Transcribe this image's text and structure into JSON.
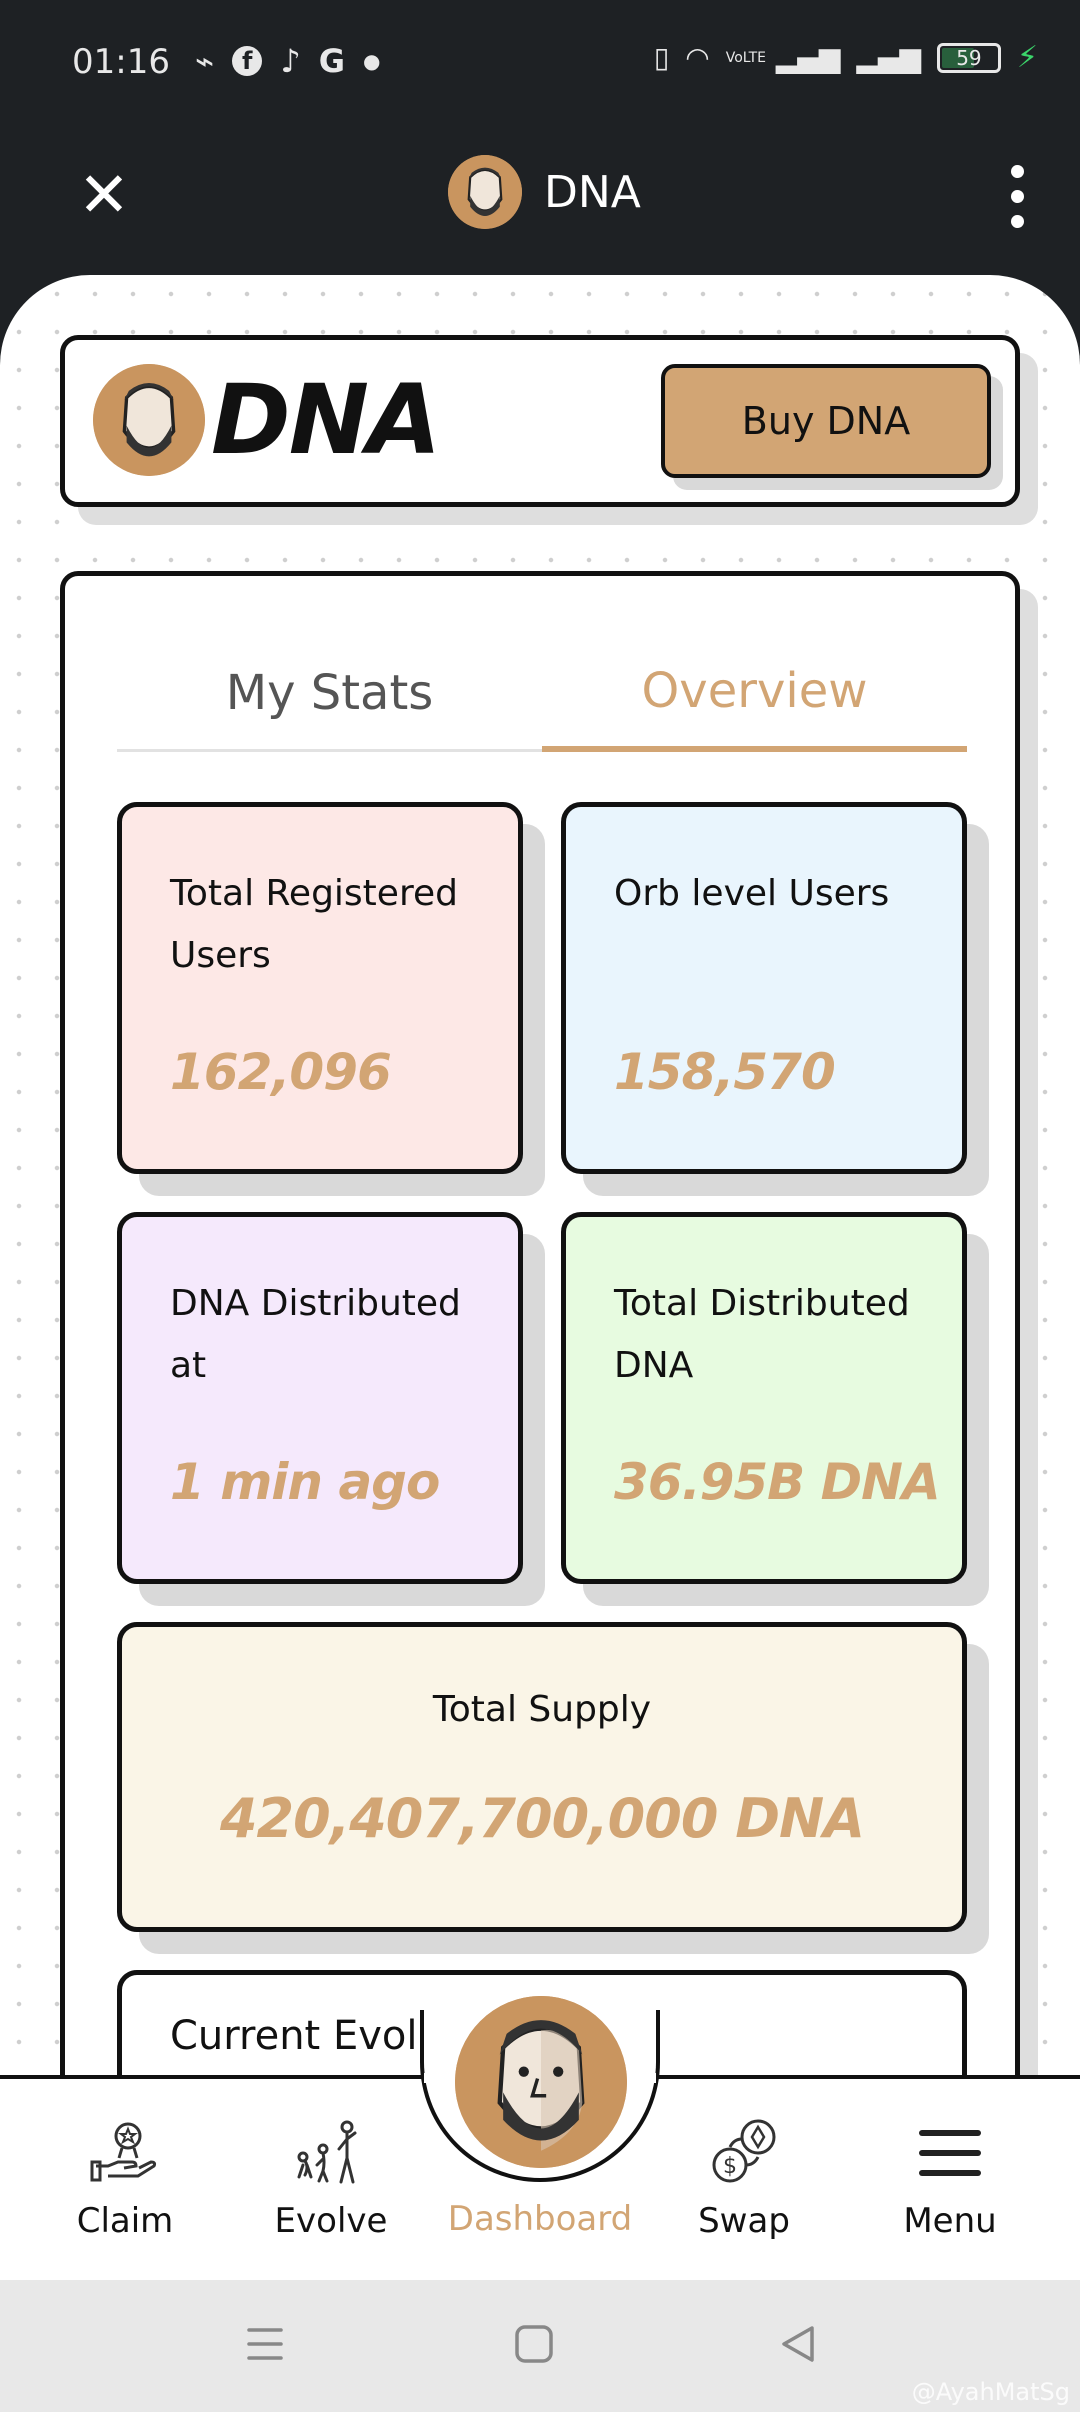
{
  "status_bar": {
    "time": "01:16",
    "battery": "59",
    "net_label": "VoLTE"
  },
  "app_header": {
    "title": "DNA"
  },
  "brand": {
    "logo_text": "DNA",
    "buy_button": "Buy DNA"
  },
  "tabs": [
    {
      "label": "My Stats",
      "active": false
    },
    {
      "label": "Overview",
      "active": true
    }
  ],
  "stats": [
    {
      "label": "Total Registered Users",
      "value": "162,096"
    },
    {
      "label": "Orb level Users",
      "value": "158,570"
    },
    {
      "label": "DNA Distributed at",
      "value": "1 min ago"
    },
    {
      "label": "Total Distributed DNA",
      "value": "36.95B DNA"
    },
    {
      "label": "Total Supply",
      "value": "420,407,700,000 DNA"
    }
  ],
  "partial_card": {
    "label": "Current Evolution Period"
  },
  "bottom_nav": [
    {
      "label": "Claim",
      "icon": "claim-icon"
    },
    {
      "label": "Evolve",
      "icon": "evolve-icon"
    },
    {
      "label": "Dashboard",
      "icon": "dashboard-avatar-icon",
      "active": true
    },
    {
      "label": "Swap",
      "icon": "swap-icon"
    },
    {
      "label": "Menu",
      "icon": "menu-icon"
    }
  ],
  "watermark": "@AyahMatSg",
  "colors": {
    "accent": "#d2a574",
    "header_bg": "#1e2124",
    "card_pink": "#fde8e6",
    "card_blue": "#e9f5fd",
    "card_purple": "#f5e9fc",
    "card_green": "#e7fbe0",
    "card_cream": "#faf5e7"
  }
}
